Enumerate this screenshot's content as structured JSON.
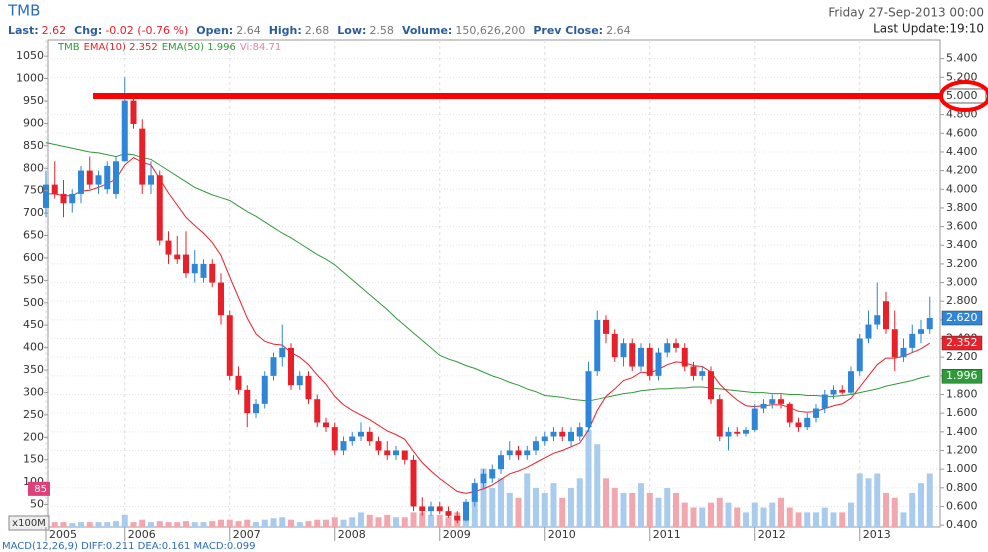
{
  "header": {
    "symbol": "TMB",
    "fields": [
      {
        "label": "Last:",
        "value": "2.62"
      },
      {
        "label": "Chg:",
        "value": "-0.02 (-0.76 %)"
      },
      {
        "label": "Open:",
        "value": "2.64"
      },
      {
        "label": "High:",
        "value": "2.68"
      },
      {
        "label": "Low:",
        "value": "2.58"
      },
      {
        "label": "Volume:",
        "value": "150,626,200"
      },
      {
        "label": "Prev Close:",
        "value": "2.64"
      }
    ],
    "date": "Friday 27-Sep-2013 00:00",
    "update": "Last Update:19:10"
  },
  "chart_data": {
    "type": "candlestick",
    "legend": {
      "symbol": "TMB",
      "ema10": "EMA(10) 2.352",
      "ema50": "EMA(50) 1.996",
      "vi": "Vi:84.71"
    },
    "volume_unit": "x100M",
    "footer": "MACD(12,26,9) DIFF:0.211 DEA:0.161 MACD:0.099",
    "categories": [
      "2005",
      null,
      null,
      null,
      null,
      null,
      null,
      null,
      null,
      "2006",
      null,
      null,
      null,
      null,
      null,
      null,
      null,
      null,
      null,
      null,
      null,
      "2007",
      null,
      null,
      null,
      null,
      null,
      null,
      null,
      null,
      null,
      null,
      null,
      "2008",
      null,
      null,
      null,
      null,
      null,
      null,
      null,
      null,
      null,
      null,
      null,
      "2009",
      null,
      null,
      null,
      null,
      null,
      null,
      null,
      null,
      null,
      null,
      null,
      "2010",
      null,
      null,
      null,
      null,
      null,
      null,
      null,
      null,
      null,
      null,
      null,
      "2011",
      null,
      null,
      null,
      null,
      null,
      null,
      null,
      null,
      null,
      null,
      null,
      "2012",
      null,
      null,
      null,
      null,
      null,
      null,
      null,
      null,
      null,
      null,
      null,
      "2013",
      null,
      null,
      null,
      null,
      null,
      null,
      null,
      null
    ],
    "open": [
      3.8,
      4.05,
      3.95,
      3.85,
      3.95,
      4.2,
      4.05,
      4.0,
      3.95,
      4.3,
      4.95,
      4.65,
      4.05,
      4.15,
      3.45,
      3.3,
      3.3,
      3.1,
      3.05,
      3.2,
      3.0,
      2.65,
      2.0,
      1.85,
      1.6,
      1.7,
      2.0,
      2.2,
      2.3,
      1.9,
      2.0,
      1.75,
      1.5,
      1.45,
      1.2,
      1.3,
      1.35,
      1.4,
      1.3,
      1.2,
      1.15,
      1.2,
      1.1,
      0.6,
      0.55,
      0.6,
      0.55,
      0.5,
      0.45,
      0.65,
      0.85,
      0.9,
      1.0,
      1.15,
      1.2,
      1.15,
      1.2,
      1.3,
      1.35,
      1.4,
      1.3,
      1.35,
      1.45,
      2.05,
      2.6,
      2.45,
      2.2,
      2.35,
      2.1,
      2.3,
      2.0,
      2.25,
      2.35,
      2.3,
      2.1,
      2.0,
      2.05,
      1.75,
      1.35,
      1.4,
      1.38,
      1.42,
      1.65,
      1.7,
      1.75,
      1.7,
      1.5,
      1.45,
      1.55,
      1.65,
      1.8,
      1.85,
      1.82,
      2.05,
      2.4,
      2.55,
      2.8,
      2.5,
      2.2,
      2.3,
      2.45,
      2.5
    ],
    "high": [
      4.2,
      4.3,
      4.1,
      4.0,
      4.25,
      4.35,
      4.2,
      4.3,
      4.35,
      5.2,
      5.0,
      4.75,
      4.3,
      4.2,
      3.55,
      3.5,
      3.55,
      3.35,
      3.25,
      3.25,
      3.1,
      2.7,
      2.1,
      1.9,
      1.75,
      2.05,
      2.25,
      2.55,
      2.35,
      2.05,
      2.05,
      1.8,
      1.55,
      1.5,
      1.35,
      1.4,
      1.5,
      1.45,
      1.35,
      1.3,
      1.25,
      1.2,
      1.15,
      0.7,
      0.65,
      0.65,
      0.6,
      0.55,
      0.68,
      0.9,
      1.0,
      1.05,
      1.2,
      1.3,
      1.25,
      1.25,
      1.35,
      1.4,
      1.45,
      1.45,
      1.45,
      1.5,
      2.15,
      2.7,
      2.65,
      2.5,
      2.4,
      2.4,
      2.35,
      2.35,
      2.3,
      2.4,
      2.4,
      2.35,
      2.15,
      2.1,
      2.1,
      1.8,
      1.45,
      1.45,
      1.45,
      1.7,
      1.75,
      1.8,
      1.8,
      1.72,
      1.55,
      1.6,
      1.7,
      1.85,
      1.9,
      1.9,
      2.1,
      2.45,
      2.7,
      3.0,
      2.9,
      2.7,
      2.4,
      2.55,
      2.6,
      2.85
    ],
    "low": [
      3.7,
      3.9,
      3.7,
      3.75,
      3.85,
      4.0,
      3.95,
      3.95,
      3.9,
      4.3,
      4.65,
      3.95,
      3.95,
      3.4,
      3.2,
      3.2,
      3.05,
      3.0,
      3.0,
      2.95,
      2.55,
      1.95,
      1.8,
      1.45,
      1.55,
      1.65,
      1.95,
      2.1,
      1.85,
      1.85,
      1.7,
      1.45,
      1.4,
      1.15,
      1.15,
      1.25,
      1.3,
      1.25,
      1.15,
      1.1,
      1.1,
      1.05,
      0.55,
      0.5,
      0.5,
      0.52,
      0.48,
      0.42,
      0.44,
      0.6,
      0.8,
      0.85,
      0.95,
      1.1,
      1.1,
      1.1,
      1.15,
      1.25,
      1.3,
      1.3,
      1.25,
      1.3,
      1.4,
      2.0,
      2.35,
      2.15,
      2.1,
      2.05,
      2.05,
      1.95,
      1.95,
      2.2,
      2.25,
      2.05,
      1.95,
      1.95,
      1.7,
      1.3,
      1.2,
      1.35,
      1.35,
      1.4,
      1.6,
      1.65,
      1.65,
      1.45,
      1.4,
      1.42,
      1.5,
      1.6,
      1.75,
      1.8,
      1.8,
      2.0,
      2.35,
      2.5,
      2.45,
      2.05,
      2.15,
      2.25,
      2.35,
      2.45
    ],
    "close": [
      4.05,
      3.95,
      3.85,
      3.95,
      4.2,
      4.05,
      4.15,
      4.25,
      4.3,
      4.95,
      4.7,
      4.05,
      4.15,
      3.45,
      3.3,
      3.25,
      3.1,
      3.2,
      3.2,
      3.0,
      2.65,
      2.0,
      1.85,
      1.6,
      1.7,
      2.0,
      2.2,
      2.3,
      1.9,
      2.0,
      1.75,
      1.5,
      1.45,
      1.2,
      1.3,
      1.35,
      1.4,
      1.3,
      1.2,
      1.15,
      1.2,
      1.1,
      0.6,
      0.55,
      0.6,
      0.55,
      0.5,
      0.45,
      0.65,
      0.85,
      0.95,
      1.0,
      1.15,
      1.2,
      1.15,
      1.2,
      1.3,
      1.35,
      1.4,
      1.35,
      1.4,
      1.45,
      2.05,
      2.6,
      2.45,
      2.2,
      2.35,
      2.1,
      2.3,
      2.0,
      2.25,
      2.35,
      2.3,
      2.1,
      2.0,
      2.05,
      1.75,
      1.35,
      1.4,
      1.38,
      1.42,
      1.65,
      1.7,
      1.75,
      1.7,
      1.5,
      1.45,
      1.55,
      1.65,
      1.8,
      1.85,
      1.82,
      2.05,
      2.4,
      2.55,
      2.65,
      2.5,
      2.2,
      2.3,
      2.45,
      2.5,
      2.62
    ],
    "volume": [
      1,
      1,
      1,
      0.8,
      1,
      1,
      1,
      1,
      1.2,
      2.5,
      1,
      1.5,
      1,
      1.2,
      1,
      1,
      1.2,
      1,
      1,
      1.2,
      1.5,
      1.5,
      1.2,
      1.5,
      1,
      1.5,
      1.8,
      2,
      1.5,
      1,
      1.2,
      1.5,
      1.5,
      2,
      1.5,
      2,
      3,
      2.5,
      2,
      2.5,
      2,
      2,
      3,
      3,
      2.5,
      2.5,
      2,
      3,
      5,
      9,
      12,
      8,
      10,
      7,
      6,
      11,
      8,
      7,
      9,
      6,
      8,
      10,
      20,
      17,
      10,
      8,
      7,
      7,
      9,
      7,
      6,
      8,
      7,
      5,
      4,
      4,
      5,
      6,
      5,
      4,
      3,
      5,
      4,
      5,
      6,
      4,
      3,
      3,
      3,
      4,
      3,
      3,
      5,
      11,
      10,
      11,
      7,
      6,
      3,
      7,
      9,
      11
    ],
    "ema10": [
      3.95,
      3.95,
      3.93,
      3.93,
      3.98,
      3.99,
      4.02,
      4.06,
      4.11,
      4.26,
      4.34,
      4.29,
      4.26,
      4.11,
      3.96,
      3.83,
      3.7,
      3.61,
      3.53,
      3.43,
      3.29,
      3.06,
      2.84,
      2.62,
      2.45,
      2.37,
      2.34,
      2.33,
      2.25,
      2.2,
      2.12,
      2.01,
      1.91,
      1.78,
      1.69,
      1.63,
      1.58,
      1.53,
      1.47,
      1.41,
      1.37,
      1.32,
      1.19,
      1.07,
      0.98,
      0.9,
      0.83,
      0.76,
      0.74,
      0.76,
      0.79,
      0.83,
      0.89,
      0.95,
      0.98,
      1.02,
      1.07,
      1.12,
      1.17,
      1.2,
      1.24,
      1.28,
      1.42,
      1.63,
      1.78,
      1.86,
      1.95,
      1.98,
      2.04,
      2.03,
      2.07,
      2.12,
      2.15,
      2.14,
      2.11,
      2.1,
      2.04,
      1.91,
      1.82,
      1.74,
      1.68,
      1.67,
      1.68,
      1.69,
      1.69,
      1.66,
      1.62,
      1.61,
      1.62,
      1.65,
      1.68,
      1.7,
      1.76,
      1.88,
      2.0,
      2.12,
      2.19,
      2.19,
      2.21,
      2.25,
      2.29,
      2.35
    ],
    "ema50": [
      4.5,
      4.48,
      4.46,
      4.44,
      4.42,
      4.4,
      4.39,
      4.37,
      4.35,
      4.38,
      4.37,
      4.34,
      4.32,
      4.26,
      4.2,
      4.14,
      4.08,
      4.02,
      3.98,
      3.94,
      3.91,
      3.88,
      3.82,
      3.76,
      3.71,
      3.65,
      3.59,
      3.53,
      3.48,
      3.42,
      3.36,
      3.3,
      3.25,
      3.19,
      3.11,
      3.03,
      2.95,
      2.87,
      2.79,
      2.71,
      2.62,
      2.54,
      2.46,
      2.38,
      2.3,
      2.22,
      2.18,
      2.15,
      2.11,
      2.08,
      2.04,
      2.0,
      1.97,
      1.93,
      1.9,
      1.86,
      1.83,
      1.79,
      1.78,
      1.77,
      1.75,
      1.74,
      1.73,
      1.75,
      1.77,
      1.79,
      1.81,
      1.82,
      1.84,
      1.85,
      1.86,
      1.86,
      1.87,
      1.87,
      1.88,
      1.88,
      1.87,
      1.86,
      1.85,
      1.84,
      1.83,
      1.82,
      1.82,
      1.81,
      1.81,
      1.8,
      1.8,
      1.79,
      1.79,
      1.78,
      1.78,
      1.79,
      1.8,
      1.82,
      1.84,
      1.86,
      1.89,
      1.91,
      1.93,
      1.95,
      1.98,
      2.0
    ],
    "colors": {
      "up": "#2f86d6",
      "down": "#e8202a",
      "vol_up": "#a9cbee",
      "vol_down": "#f2a7ae",
      "ema10": "#e8202a",
      "ema50": "#2f9a3a"
    },
    "ylim": [
      0.38,
      5.6
    ],
    "yticks": [
      {
        "value": 0.4,
        "label": "0.400"
      },
      {
        "value": 0.6,
        "label": "0.600"
      },
      {
        "value": 0.8,
        "label": "0.800"
      },
      {
        "value": 1.0,
        "label": "1.000"
      },
      {
        "value": 1.2,
        "label": "1.200"
      },
      {
        "value": 1.4,
        "label": "1.400"
      },
      {
        "value": 1.6,
        "label": "1.600"
      },
      {
        "value": 1.8,
        "label": "1.800"
      },
      {
        "value": 2.0,
        "label": "2.000"
      },
      {
        "value": 2.2,
        "label": "2.200"
      },
      {
        "value": 2.4,
        "label": "2.400"
      },
      {
        "value": 2.6,
        "label": "2.600"
      },
      {
        "value": 2.8,
        "label": "2.800"
      },
      {
        "value": 3.0,
        "label": "3.000"
      },
      {
        "value": 3.2,
        "label": "3.200"
      },
      {
        "value": 3.4,
        "label": "3.400"
      },
      {
        "value": 3.6,
        "label": "3.600"
      },
      {
        "value": 3.8,
        "label": "3.800"
      },
      {
        "value": 4.0,
        "label": "4.000"
      },
      {
        "value": 4.2,
        "label": "4.200"
      },
      {
        "value": 4.4,
        "label": "4.400"
      },
      {
        "value": 4.6,
        "label": "4.600"
      },
      {
        "value": 4.8,
        "label": "4.800"
      },
      {
        "value": 5.2,
        "label": "5.200"
      },
      {
        "value": 5.4,
        "label": "5.400"
      }
    ],
    "y2lim": [
      0,
      1086
    ],
    "y2ticks": [
      50,
      100,
      150,
      200,
      250,
      300,
      350,
      400,
      450,
      500,
      550,
      600,
      650,
      700,
      750,
      800,
      850,
      900,
      950,
      1000,
      1050
    ],
    "vlim": [
      0,
      100
    ],
    "grid": true,
    "level_line": {
      "value": 5.0,
      "label": "5.000"
    },
    "badges": [
      {
        "value": 2.62,
        "label": "2.620",
        "color": "#2f86d6"
      },
      {
        "value": 2.352,
        "label": "2.352",
        "color": "#e8202a"
      },
      {
        "value": 1.996,
        "label": "1.996",
        "color": "#2f9a3a"
      }
    ],
    "left_badge": {
      "value": 85,
      "color": "#e0407a"
    }
  }
}
